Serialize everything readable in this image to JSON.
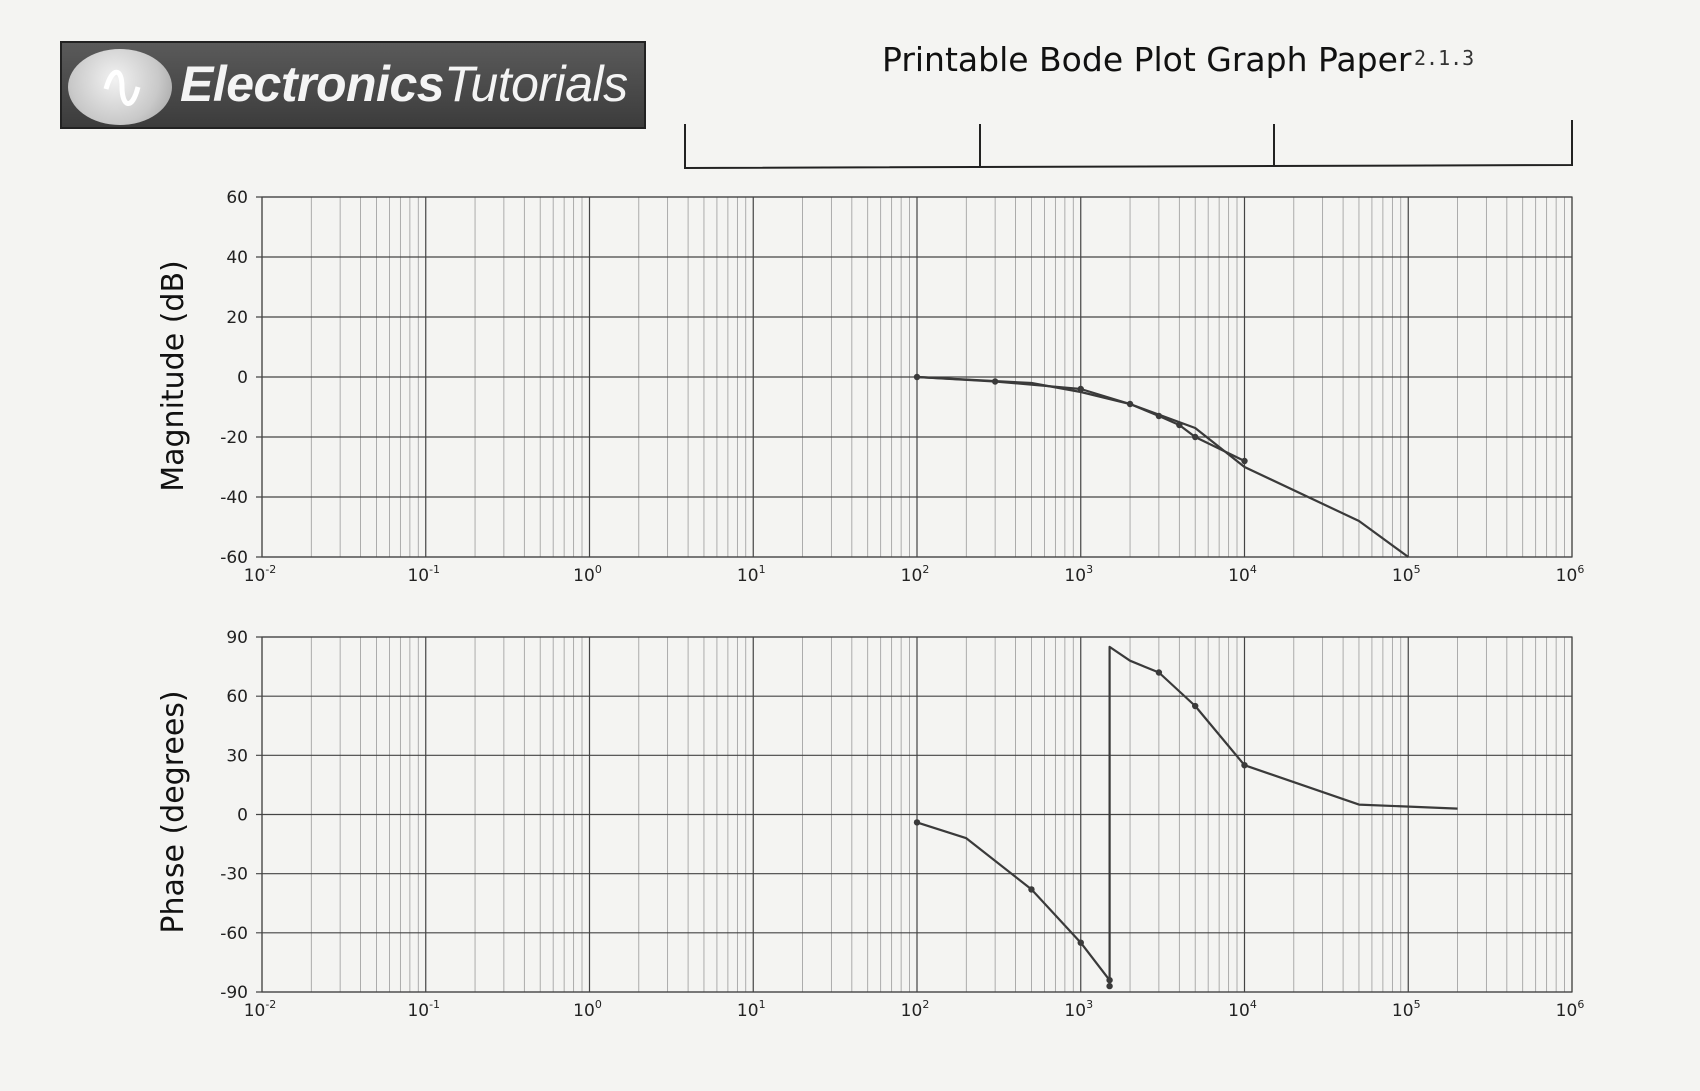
{
  "header": {
    "logo_bold": "Electronics",
    "logo_light": "Tutorials",
    "title": "Printable Bode Plot Graph Paper",
    "note": "2.1.3"
  },
  "chart_data": [
    {
      "type": "line",
      "ylabel": "Magnitude (dB)",
      "xscale": "log",
      "xlim": [
        0.01,
        1000000
      ],
      "ylim": [
        -60,
        60
      ],
      "x_ticks": [
        "10",
        "10",
        "10",
        "10",
        "10",
        "10",
        "10",
        "10",
        "10"
      ],
      "x_tick_exponents": [
        "-2",
        "-1",
        "0",
        "1",
        "2",
        "3",
        "4",
        "5",
        "6"
      ],
      "y_ticks": [
        "60",
        "40",
        "20",
        "0",
        "-20",
        "-40",
        "-60"
      ],
      "y_tick_values": [
        60,
        40,
        20,
        0,
        -20,
        -40,
        -60
      ],
      "grid": true,
      "series": [
        {
          "x": [
            100,
            300,
            1000,
            2000,
            3000,
            4000,
            5000,
            10000
          ],
          "y": [
            0,
            -1.5,
            -4,
            -9,
            -13,
            -16,
            -20,
            -28
          ],
          "markers": true
        },
        {
          "x": [
            100,
            500,
            1000,
            2000,
            5000,
            10000,
            50000,
            100000
          ],
          "y": [
            0,
            -2,
            -5,
            -9,
            -17,
            -30,
            -48,
            -60
          ],
          "markers": false
        }
      ]
    },
    {
      "type": "line",
      "ylabel": "Phase (degrees)",
      "xscale": "log",
      "xlim": [
        0.01,
        1000000
      ],
      "ylim": [
        -90,
        90
      ],
      "x_ticks": [
        "10",
        "10",
        "10",
        "10",
        "10",
        "10",
        "10",
        "10",
        "10"
      ],
      "x_tick_exponents": [
        "-2",
        "-1",
        "0",
        "1",
        "2",
        "3",
        "4",
        "5",
        "6"
      ],
      "y_ticks": [
        "90",
        "60",
        "30",
        "0",
        "-30",
        "-60",
        "-90"
      ],
      "y_tick_values": [
        90,
        60,
        30,
        0,
        -30,
        -60,
        -90
      ],
      "grid": true,
      "series": [
        {
          "x": [
            100,
            200,
            500,
            1000,
            1500,
            1500,
            2000,
            3000,
            5000,
            10000,
            50000,
            200000
          ],
          "y": [
            -4,
            -12,
            -38,
            -65,
            -84,
            85,
            78,
            72,
            55,
            25,
            5,
            3
          ],
          "markers": true,
          "marker_points": [
            [
              100,
              -4
            ],
            [
              500,
              -38
            ],
            [
              1000,
              -65
            ],
            [
              1500,
              -84
            ],
            [
              3000,
              72
            ],
            [
              5000,
              55
            ],
            [
              10000,
              25
            ]
          ]
        }
      ],
      "isolated_points": [
        [
          1500,
          -87
        ]
      ]
    }
  ],
  "styles": {
    "background": "#f4f4f2",
    "grid_major": "#444444",
    "grid_minor": "#9a9a9a",
    "curve": "#3a3a3a"
  }
}
